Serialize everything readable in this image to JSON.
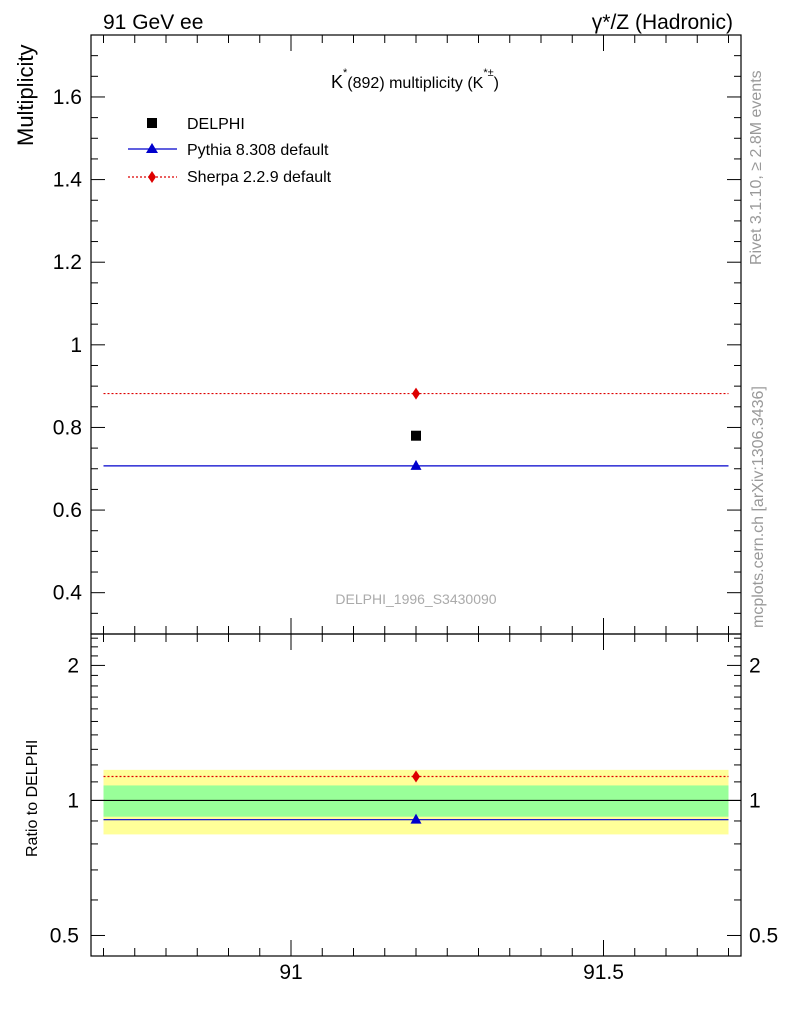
{
  "header": {
    "left": "91 GeV ee",
    "right": "γ*/Z (Hadronic)"
  },
  "side_labels": {
    "top": "Rivet 3.1.10, ≥ 2.8M events",
    "bottom": "mcplots.cern.ch [arXiv:1306.3436]"
  },
  "chart_data": [
    {
      "type": "scatter",
      "title_parts": [
        "K",
        "*",
        "(892) multiplicity (K",
        "*±",
        ")"
      ],
      "ylabel": "Multiplicity",
      "analysis_label": "DELPHI_1996_S3430090",
      "xlim": [
        90.68,
        91.72
      ],
      "ylim": [
        0.3,
        1.75
      ],
      "x_ticks": [
        91,
        91.5
      ],
      "x_tick_labels": [
        "91",
        "91.5"
      ],
      "y_ticks": [
        0.4,
        0.6,
        0.8,
        1.0,
        1.2,
        1.4,
        1.6
      ],
      "y_tick_labels": [
        "0.4",
        "0.6",
        "0.8",
        "1",
        "1.2",
        "1.4",
        "1.6"
      ],
      "legend_position": "top-left",
      "series": [
        {
          "name": "DELPHI",
          "marker": "square",
          "color": "#000000",
          "x": [
            91.2
          ],
          "y": [
            0.78
          ]
        },
        {
          "name": "Pythia 8.308 default",
          "marker": "triangle",
          "color": "#0000cc",
          "line": "solid",
          "x": [
            91.2
          ],
          "y": [
            0.707
          ],
          "xrange": [
            90.7,
            91.7
          ]
        },
        {
          "name": "Sherpa 2.2.9 default",
          "marker": "diamond",
          "color": "#dd0000",
          "line": "dotted",
          "x": [
            91.2
          ],
          "y": [
            0.882
          ],
          "xrange": [
            90.7,
            91.7
          ]
        }
      ]
    },
    {
      "type": "scatter",
      "ylabel": "Ratio to DELPHI",
      "ylim": [
        0.45,
        2.35
      ],
      "y_scale": "log",
      "y_ticks": [
        0.5,
        1,
        2
      ],
      "y_tick_labels": [
        "0.5",
        "1",
        "2"
      ],
      "band_inner": [
        0.92,
        1.08
      ],
      "band_outer": [
        0.84,
        1.17
      ],
      "reference": 1,
      "series": [
        {
          "name": "Pythia 8.308 default",
          "color": "#0000cc",
          "marker": "triangle",
          "x": [
            91.2
          ],
          "y": [
            0.906
          ]
        },
        {
          "name": "Sherpa 2.2.9 default",
          "color": "#dd0000",
          "marker": "diamond",
          "x": [
            91.2
          ],
          "y": [
            1.131
          ]
        }
      ]
    }
  ]
}
